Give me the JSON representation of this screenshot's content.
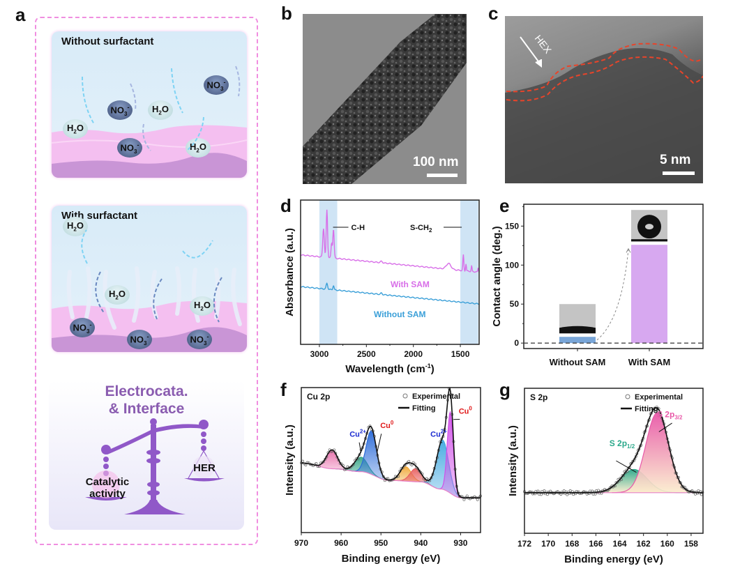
{
  "panel_labels": {
    "a": "a",
    "b": "b",
    "c": "c",
    "d": "d",
    "e": "e",
    "f": "f",
    "g": "g"
  },
  "panel_a": {
    "top_scene": {
      "title": "Without surfactant",
      "species": [
        "H2O",
        "NO3-",
        "H2O",
        "NO3-",
        "NO3-",
        "H2O"
      ]
    },
    "middle_scene": {
      "title": "With surfactant",
      "species": [
        "H2O",
        "H2O",
        "H2O",
        "NO3-",
        "NO3-",
        "NO3-"
      ]
    },
    "bottom_scene": {
      "title_line1": "Electrocata.",
      "title_line2": "& Interface",
      "left_pan_line1": "Catalytic",
      "left_pan_line2": "activity",
      "right_pan": "HER"
    },
    "chem": {
      "h2o_main": "H",
      "h2o_sub": "2",
      "h2o_end": "O",
      "no3_main": "NO",
      "no3_sub": "3",
      "no3_sup": "-"
    },
    "colors": {
      "border": "#f08ee0",
      "water": "#d9ecf7",
      "substrate": "#f0b8ec",
      "scale": "#8e4fc4"
    }
  },
  "panel_b": {
    "scale_label": "100 nm"
  },
  "panel_c": {
    "scale_label": "5 nm",
    "annotation": "HEX",
    "outline_color": "#e8442a"
  },
  "chart_data": [
    {
      "id": "d",
      "type": "line",
      "xlabel": "Wavelength (cm",
      "xlabel_sup": "-1",
      "xlabel_end": ")",
      "ylabel": "Absorbance (a.u.)",
      "xlim": [
        3200,
        1300
      ],
      "xticks": [
        3000,
        2500,
        2000,
        1500
      ],
      "xtick_labels": [
        "3000",
        "2500",
        "2000",
        "1500"
      ],
      "shaded_regions": [
        {
          "from": 3000,
          "to": 2810,
          "label": "C-H"
        },
        {
          "from": 1500,
          "to": 1310,
          "label": "S-CH",
          "label_sub": "2"
        }
      ],
      "series": [
        {
          "name": "With SAM",
          "color": "#d86ee8",
          "baseline_start": 0.62,
          "baseline_end": 0.5,
          "peaks": [
            [
              2956,
              0.2,
              8
            ],
            [
              2920,
              0.33,
              7
            ],
            [
              2870,
              0.1,
              6
            ],
            [
              2850,
              0.2,
              7
            ],
            [
              2340,
              0.01,
              10
            ],
            [
              1625,
              0.04,
              25
            ],
            [
              1468,
              0.11,
              5
            ],
            [
              1440,
              0.05,
              4
            ],
            [
              1380,
              0.04,
              4
            ],
            [
              1310,
              0.03,
              4
            ]
          ]
        },
        {
          "name": "Without SAM",
          "color": "#3a9fd8",
          "baseline_start": 0.4,
          "baseline_end": 0.28,
          "peaks": [
            [
              2920,
              0.04,
              8
            ],
            [
              2850,
              0.03,
              6
            ],
            [
              2340,
              0.01,
              8
            ]
          ]
        }
      ]
    },
    {
      "id": "e",
      "type": "bar",
      "categories": [
        "Without SAM",
        "With SAM"
      ],
      "values": [
        8,
        126
      ],
      "colors": [
        "#79a6d8",
        "#d7a8f0"
      ],
      "ylabel": "Contact angle (deg.)",
      "ylim": [
        -7,
        178
      ],
      "yticks": [
        0,
        50,
        100,
        150
      ],
      "ytick_labels": [
        "0",
        "50",
        "100",
        "150"
      ],
      "reference_line": 0
    },
    {
      "id": "f",
      "type": "line",
      "title": "Cu 2p",
      "xlabel": "Binding energy (eV)",
      "ylabel": "Intensity (a.u.)",
      "xlim": [
        970,
        925
      ],
      "ylim": [
        0,
        1
      ],
      "xticks": [
        970,
        960,
        950,
        940,
        930
      ],
      "xtick_labels": [
        "970",
        "960",
        "950",
        "940",
        "930"
      ],
      "legend": [
        "Experimental",
        "Fitting"
      ],
      "legend_position": "top-right",
      "background": {
        "points": [
          [
            970,
            0.48
          ],
          [
            962,
            0.44
          ],
          [
            955,
            0.42
          ],
          [
            948,
            0.36
          ],
          [
            940,
            0.35
          ],
          [
            935,
            0.3
          ],
          [
            930,
            0.24
          ],
          [
            925,
            0.24
          ]
        ]
      },
      "components": [
        {
          "center": 962.3,
          "height": 0.13,
          "width": 1.4,
          "color": "#e86aa8",
          "name": ""
        },
        {
          "center": 955.0,
          "height": 0.1,
          "width": 1.6,
          "color": "#3aa88a",
          "name": "Cu2+"
        },
        {
          "center": 952.4,
          "height": 0.3,
          "width": 1.3,
          "color": "#2a6ad8",
          "name": "Cu0"
        },
        {
          "center": 943.8,
          "height": 0.1,
          "width": 1.4,
          "color": "#f0a838",
          "name": ""
        },
        {
          "center": 941.3,
          "height": 0.09,
          "width": 1.4,
          "color": "#e86060",
          "name": ""
        },
        {
          "center": 934.5,
          "height": 0.34,
          "width": 1.5,
          "color": "#40a8e0",
          "name": "Cu2+"
        },
        {
          "center": 932.6,
          "height": 0.56,
          "width": 0.75,
          "color": "#d050e8",
          "name": "Cu0"
        }
      ],
      "annotations": [
        {
          "text": "Cu",
          "sup": "2+",
          "color": "#1a2ad0",
          "x": 955.8
        },
        {
          "text": "Cu",
          "sup": "0",
          "color": "#e01818",
          "x": 948.5
        },
        {
          "text": "Cu",
          "sup": "2+",
          "color": "#1a2ad0",
          "x": 935.5
        },
        {
          "text": "Cu",
          "sup": "0",
          "color": "#e01818",
          "x": 928.8
        }
      ]
    },
    {
      "id": "g",
      "type": "line",
      "title": "S 2p",
      "xlabel": "Binding energy (eV)",
      "ylabel": "Intensity (a.u.)",
      "xlim": [
        172,
        157
      ],
      "ylim": [
        0,
        1
      ],
      "xticks": [
        172,
        170,
        168,
        166,
        164,
        162,
        160,
        158
      ],
      "xtick_labels": [
        "172",
        "170",
        "168",
        "166",
        "164",
        "162",
        "160",
        "158"
      ],
      "legend": [
        "Experimental",
        "Fitting"
      ],
      "legend_position": "top-right",
      "baseline": 0.28,
      "components": [
        {
          "center": 162.8,
          "height": 0.16,
          "width": 1.1,
          "color": "#2aa88a",
          "name": "S 2p",
          "sub": "1/2"
        },
        {
          "center": 160.85,
          "height": 0.55,
          "width": 0.95,
          "color": "#e858a8",
          "name": "S 2p",
          "sub": "3/2"
        }
      ]
    }
  ]
}
